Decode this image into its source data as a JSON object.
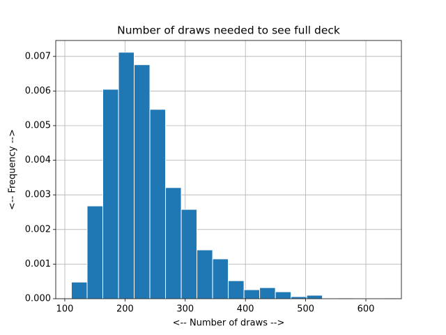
{
  "chart_data": {
    "type": "histogram",
    "title": "Number of draws needed to see full deck",
    "xlabel": "<-- Number of draws -->",
    "ylabel": "<-- Frequency -->",
    "bins": [
      111,
      137.1,
      163.1,
      189.2,
      215.2,
      241.3,
      267.3,
      293.4,
      319.4,
      345.5,
      371.5,
      397.6,
      423.6,
      449.7,
      475.7,
      501.8,
      527.8,
      553.9,
      579.9,
      606.0,
      632.0
    ],
    "values": [
      0.00048,
      0.00268,
      0.00605,
      0.00712,
      0.00676,
      0.00547,
      0.00321,
      0.00258,
      0.00141,
      0.00115,
      0.00052,
      0.00026,
      0.00032,
      0.0002,
      6e-05,
      0.0001,
      2e-05,
      0,
      2e-05,
      2e-05
    ],
    "color": "#1f77b4",
    "xlim": [
      85,
      659
    ],
    "ylim": [
      0,
      0.00746
    ],
    "xticks": [
      100,
      200,
      300,
      400,
      500,
      600
    ],
    "yticks": [
      {
        "value": 0,
        "label": "0.000"
      },
      {
        "value": 0.001,
        "label": "0.001"
      },
      {
        "value": 0.002,
        "label": "0.002"
      },
      {
        "value": 0.003,
        "label": "0.003"
      },
      {
        "value": 0.004,
        "label": "0.004"
      },
      {
        "value": 0.005,
        "label": "0.005"
      },
      {
        "value": 0.006,
        "label": "0.006"
      },
      {
        "value": 0.007,
        "label": "0.007"
      }
    ],
    "grid": true
  }
}
